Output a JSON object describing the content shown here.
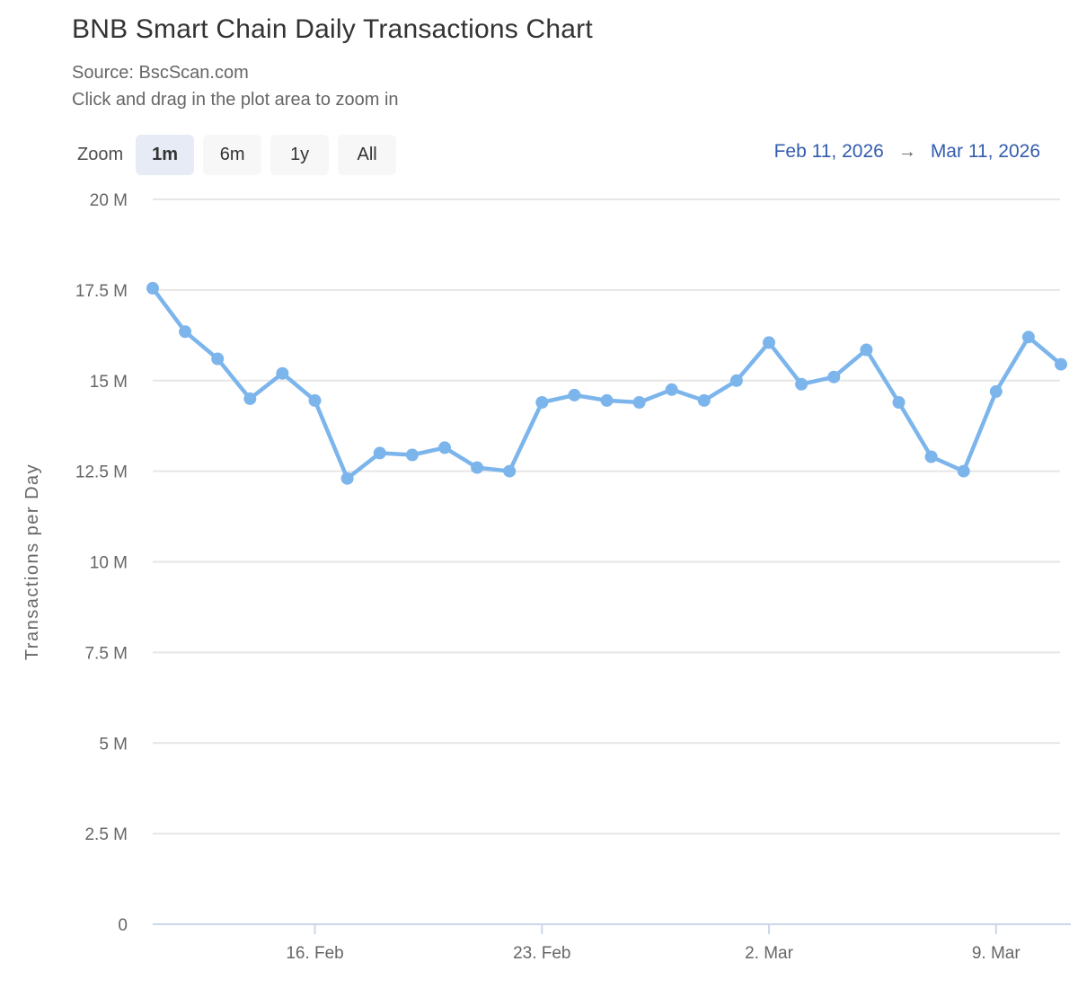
{
  "header": {
    "title": "BNB Smart Chain Daily Transactions Chart",
    "subtitle_source": "Source: BscScan.com",
    "subtitle_hint": "Click and drag in the plot area to zoom in"
  },
  "range_selector": {
    "zoom_label": "Zoom",
    "buttons": [
      {
        "label": "1m",
        "selected": true
      },
      {
        "label": "6m",
        "selected": false
      },
      {
        "label": "1y",
        "selected": false
      },
      {
        "label": "All",
        "selected": false
      }
    ],
    "from_date": "Feb 11, 2026",
    "arrow": "→",
    "to_date": "Mar 11, 2026"
  },
  "chart_data": {
    "type": "line",
    "title": "BNB Smart Chain Daily Transactions Chart",
    "subtitle": "Source: BscScan.com",
    "ylabel": "Transactions per Day",
    "xlabel": "",
    "unit": "millions of transactions per day",
    "ylim": [
      0,
      20
    ],
    "grid": true,
    "legend": "none",
    "line_color": "#7cb5ec",
    "gridline_color": "#e6e6e6",
    "axis_line_color": "#ccd6eb",
    "tick_label_color": "#666666",
    "x": [
      "Feb 11",
      "Feb 12",
      "Feb 13",
      "Feb 14",
      "Feb 15",
      "Feb 16",
      "Feb 17",
      "Feb 18",
      "Feb 19",
      "Feb 20",
      "Feb 21",
      "Feb 22",
      "Feb 23",
      "Feb 24",
      "Feb 25",
      "Feb 26",
      "Feb 27",
      "Feb 28",
      "Mar 1",
      "Mar 2",
      "Mar 3",
      "Mar 4",
      "Mar 5",
      "Mar 6",
      "Mar 7",
      "Mar 8",
      "Mar 9",
      "Mar 10",
      "Mar 11"
    ],
    "series": [
      {
        "name": "Transactions per Day",
        "values_millions": [
          17.55,
          16.35,
          15.6,
          14.5,
          15.2,
          14.45,
          12.3,
          13.0,
          12.95,
          13.15,
          12.6,
          12.5,
          14.4,
          14.6,
          14.45,
          14.4,
          14.75,
          14.45,
          15.0,
          16.05,
          14.9,
          15.1,
          15.85,
          14.4,
          12.9,
          12.5,
          14.7,
          16.2,
          15.45
        ]
      }
    ],
    "y_tick_values": [
      0,
      2.5,
      5,
      7.5,
      10,
      12.5,
      15,
      17.5,
      20
    ],
    "y_tick_labels": [
      "0",
      "2.5 M",
      "5 M",
      "7.5 M",
      "10 M",
      "12.5 M",
      "15 M",
      "17.5 M",
      "20 M"
    ],
    "x_ticks": [
      {
        "index": 5,
        "label": "16. Feb"
      },
      {
        "index": 12,
        "label": "23. Feb"
      },
      {
        "index": 19,
        "label": "2. Mar"
      },
      {
        "index": 26,
        "label": "9. Mar"
      }
    ]
  }
}
